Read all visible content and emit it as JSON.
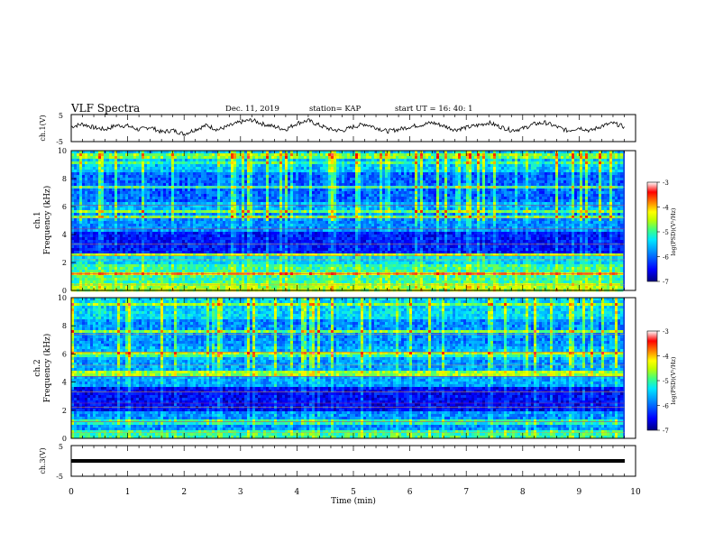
{
  "header": {
    "title": "VLF Spectra",
    "date": "Dec. 11, 2019",
    "station": "station= KAP",
    "start": "start  UT =   16: 40: 1"
  },
  "colorbar": {
    "ticks": [
      "-3",
      "-4",
      "-5",
      "-6",
      "-7"
    ],
    "label": "log(PSD)(V²/Hz)",
    "colormap": [
      "#000080",
      "#0000ff",
      "#0080ff",
      "#00e0ff",
      "#40ff80",
      "#c0ff00",
      "#ffff00",
      "#ff8000",
      "#ff0000",
      "#ffffff"
    ]
  },
  "chart_data": [
    {
      "type": "line",
      "name": "ch1-waveform",
      "ylabel": "ch.1(V)",
      "ylim": [
        -5,
        5
      ],
      "yticks": [
        "5",
        "-5"
      ],
      "xlim": [
        0,
        10
      ],
      "x": [
        0,
        0.2,
        0.4,
        0.6,
        0.8,
        1.0,
        1.2,
        1.4,
        1.6,
        1.8,
        2.0,
        2.2,
        2.4,
        2.6,
        2.8,
        3.0,
        3.2,
        3.4,
        3.6,
        3.8,
        4.0,
        4.2,
        4.4,
        4.6,
        4.8,
        5.0,
        5.2,
        5.4,
        5.6,
        5.8,
        6.0,
        6.2,
        6.4,
        6.6,
        6.8,
        7.0,
        7.2,
        7.4,
        7.6,
        7.8,
        8.0,
        8.2,
        8.4,
        8.6,
        8.8,
        9.0,
        9.2,
        9.4,
        9.6,
        9.8
      ],
      "y": [
        0.5,
        1.5,
        0.2,
        -0.5,
        1.0,
        0.8,
        -0.6,
        0.4,
        -1.5,
        -0.8,
        -2.2,
        -0.5,
        1.0,
        -0.6,
        0.8,
        2.2,
        3.0,
        1.5,
        0.5,
        -0.5,
        1.8,
        2.8,
        1.0,
        -0.5,
        -1.0,
        0.5,
        1.5,
        0.2,
        -1.2,
        -0.5,
        0.5,
        1.2,
        2.0,
        0.8,
        -0.6,
        0.2,
        1.0,
        2.0,
        0.5,
        -0.8,
        -0.2,
        1.5,
        2.0,
        0.5,
        -1.0,
        0.2,
        -1.0,
        0.8,
        1.8,
        0.5
      ]
    },
    {
      "type": "heatmap",
      "name": "ch1-spectrogram",
      "ylabel": "ch.1\nFrequency (kHz)",
      "ylim": [
        0,
        10
      ],
      "yticks": [
        "0",
        "2",
        "4",
        "6",
        "8",
        "10"
      ],
      "xlim": [
        0,
        9.8
      ],
      "zlim": [
        -7,
        -3
      ],
      "y_bands_khz": [
        {
          "from": 0,
          "to": 0.5,
          "level": -4.6
        },
        {
          "from": 0.5,
          "to": 2.0,
          "level": -5.0
        },
        {
          "from": 2.0,
          "to": 2.6,
          "level": -5.4
        },
        {
          "from": 2.6,
          "to": 4.2,
          "level": -6.4
        },
        {
          "from": 4.2,
          "to": 5.6,
          "level": -5.8
        },
        {
          "from": 5.6,
          "to": 6.4,
          "level": -5.6
        },
        {
          "from": 6.4,
          "to": 8.4,
          "level": -6.0
        },
        {
          "from": 8.4,
          "to": 10,
          "level": -5.5
        }
      ]
    },
    {
      "type": "heatmap",
      "name": "ch2-spectrogram",
      "ylabel": "ch.2\nFrequency (kHz)",
      "ylim": [
        0,
        10
      ],
      "yticks": [
        "0",
        "2",
        "4",
        "6",
        "8",
        "10"
      ],
      "xlim": [
        0,
        9.8
      ],
      "zlim": [
        -7,
        -3
      ],
      "y_bands_khz": [
        {
          "from": 0,
          "to": 0.5,
          "level": -5.0
        },
        {
          "from": 0.5,
          "to": 2.0,
          "level": -5.8
        },
        {
          "from": 2.0,
          "to": 3.6,
          "level": -6.5
        },
        {
          "from": 3.6,
          "to": 5.6,
          "level": -5.7
        },
        {
          "from": 5.6,
          "to": 6.5,
          "level": -5.6
        },
        {
          "from": 6.5,
          "to": 8.4,
          "level": -5.8
        },
        {
          "from": 8.4,
          "to": 10,
          "level": -5.4
        }
      ]
    },
    {
      "type": "line",
      "name": "ch3-waveform",
      "ylabel": "ch.3(V)",
      "ylim": [
        -5,
        5
      ],
      "yticks": [
        "5",
        "-5"
      ],
      "xlim": [
        0,
        10
      ],
      "x": [
        0,
        9.8
      ],
      "y": [
        0,
        0
      ]
    }
  ],
  "xaxis": {
    "label": "Time (min)",
    "ticks": [
      "0",
      "1",
      "2",
      "3",
      "4",
      "5",
      "6",
      "7",
      "8",
      "9",
      "10"
    ]
  }
}
